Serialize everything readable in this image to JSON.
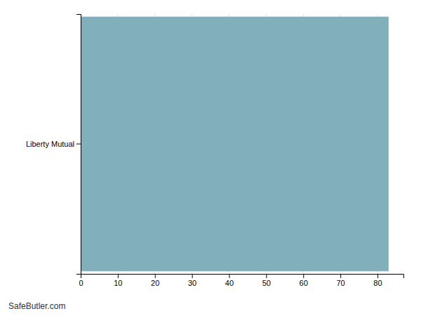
{
  "chart_data": {
    "type": "bar",
    "orientation": "horizontal",
    "categories": [
      "Liberty Mutual"
    ],
    "values": [
      83
    ],
    "color": "#82b0ba",
    "xlim": [
      0,
      87
    ],
    "xticks": [
      0,
      10,
      20,
      30,
      40,
      50,
      60,
      70,
      80
    ],
    "grid": true,
    "annotations": [
      "SafeButler.com"
    ]
  }
}
